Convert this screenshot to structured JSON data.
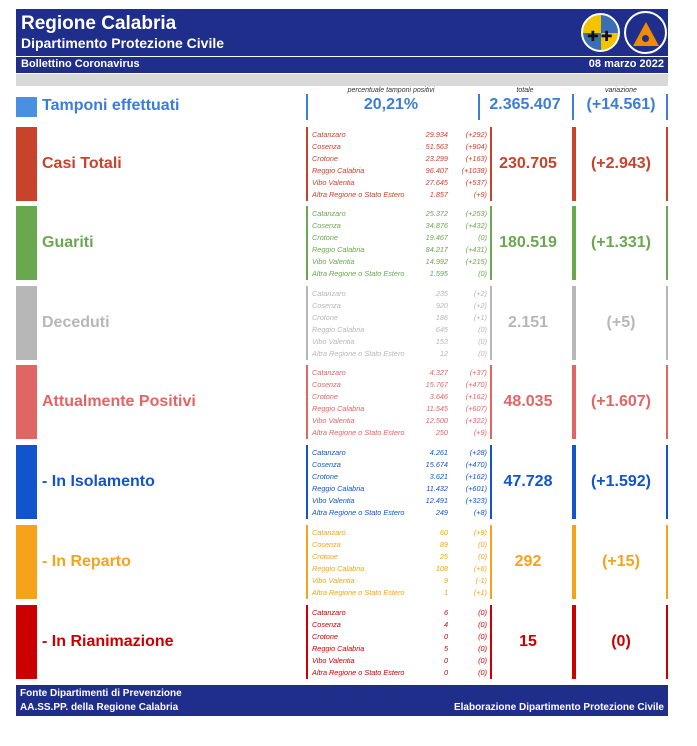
{
  "header": {
    "title": "Regione Calabria",
    "subtitle": "Dipartimento Protezione Civile",
    "bulletin": "Bollettino Coronavirus",
    "date": "08 marzo 2022"
  },
  "columns": {
    "pct_label": "percentuale tamponi positivi",
    "total_label": "totale",
    "variation_label": "variazione"
  },
  "tamponi": {
    "label": "Tamponi effettuati",
    "pct": "20,21%",
    "total": "2.365.407",
    "variation": "(+14.561)",
    "color": "#3b7dd8"
  },
  "sections": [
    {
      "id": "casi-totali",
      "label": "Casi Totali",
      "color": "#c8432b",
      "total": "230.705",
      "variation": "(+2.943)",
      "regions": [
        {
          "name": "Catanzaro",
          "value": "29.934",
          "delta": "(+292)"
        },
        {
          "name": "Cosenza",
          "value": "51.563",
          "delta": "(+904)"
        },
        {
          "name": "Crotone",
          "value": "23.299",
          "delta": "(+163)"
        },
        {
          "name": "Reggio Calabria",
          "value": "96.407",
          "delta": "(+1038)"
        },
        {
          "name": "Vibo Valentia",
          "value": "27.645",
          "delta": "(+537)"
        },
        {
          "name": "Altra Regione o Stato Estero",
          "value": "1.857",
          "delta": "(+9)"
        }
      ]
    },
    {
      "id": "guariti",
      "label": "Guariti",
      "color": "#6aa84f",
      "total": "180.519",
      "variation": "(+1.331)",
      "regions": [
        {
          "name": "Catanzaro",
          "value": "25.372",
          "delta": "(+253)"
        },
        {
          "name": "Cosenza",
          "value": "34.876",
          "delta": "(+432)"
        },
        {
          "name": "Crotone",
          "value": "19.467",
          "delta": "(0)"
        },
        {
          "name": "Reggio Calabria",
          "value": "84.217",
          "delta": "(+431)"
        },
        {
          "name": "Vibo Valentia",
          "value": "14.992",
          "delta": "(+215)"
        },
        {
          "name": "Altra Regione o Stato Estero",
          "value": "1.595",
          "delta": "(0)"
        }
      ]
    },
    {
      "id": "deceduti",
      "label": "Deceduti",
      "color": "#b7b7b7",
      "total": "2.151",
      "variation": "(+5)",
      "regions": [
        {
          "name": "Catanzaro",
          "value": "235",
          "delta": "(+2)"
        },
        {
          "name": "Cosenza",
          "value": "920",
          "delta": "(+2)"
        },
        {
          "name": "Crotone",
          "value": "186",
          "delta": "(+1)"
        },
        {
          "name": "Reggio Calabria",
          "value": "645",
          "delta": "(0)"
        },
        {
          "name": "Vibo Valentia",
          "value": "153",
          "delta": "(0)"
        },
        {
          "name": "Altra Regione o Stato Estero",
          "value": "12",
          "delta": "(0)"
        }
      ]
    },
    {
      "id": "attualmente-positivi",
      "label": "Attualmente Positivi",
      "color": "#e06666",
      "total": "48.035",
      "variation": "(+1.607)",
      "regions": [
        {
          "name": "Catanzaro",
          "value": "4.327",
          "delta": "(+37)"
        },
        {
          "name": "Cosenza",
          "value": "15.767",
          "delta": "(+470)"
        },
        {
          "name": "Crotone",
          "value": "3.646",
          "delta": "(+162)"
        },
        {
          "name": "Reggio Calabria",
          "value": "11.545",
          "delta": "(+607)"
        },
        {
          "name": "Vibo Valentia",
          "value": "12.500",
          "delta": "(+322)"
        },
        {
          "name": "Altra Regione o Stato Estero",
          "value": "250",
          "delta": "(+9)"
        }
      ]
    },
    {
      "id": "in-isolamento",
      "label": "- In Isolamento",
      "color": "#1155cc",
      "total": "47.728",
      "variation": "(+1.592)",
      "regions": [
        {
          "name": "Catanzaro",
          "value": "4.261",
          "delta": "(+28)"
        },
        {
          "name": "Cosenza",
          "value": "15.674",
          "delta": "(+470)"
        },
        {
          "name": "Crotone",
          "value": "3.621",
          "delta": "(+162)"
        },
        {
          "name": "Reggio Calabria",
          "value": "11.432",
          "delta": "(+601)"
        },
        {
          "name": "Vibo Valentia",
          "value": "12.491",
          "delta": "(+323)"
        },
        {
          "name": "Altra Regione o Stato Estero",
          "value": "249",
          "delta": "(+8)"
        }
      ]
    },
    {
      "id": "in-reparto",
      "label": "- In Reparto",
      "color": "#f6a31b",
      "total": "292",
      "variation": "(+15)",
      "regions": [
        {
          "name": "Catanzaro",
          "value": "60",
          "delta": "(+9)"
        },
        {
          "name": "Cosenza",
          "value": "89",
          "delta": "(0)"
        },
        {
          "name": "Crotone",
          "value": "25",
          "delta": "(0)"
        },
        {
          "name": "Reggio Calabria",
          "value": "108",
          "delta": "(+6)"
        },
        {
          "name": "Vibo Valentia",
          "value": "9",
          "delta": "(-1)"
        },
        {
          "name": "Altra Regione o Stato Estero",
          "value": "1",
          "delta": "(+1)"
        }
      ]
    },
    {
      "id": "in-rianimazione",
      "label": "- In Rianimazione",
      "color": "#cc0000",
      "total": "15",
      "variation": "(0)",
      "regions": [
        {
          "name": "Catanzaro",
          "value": "6",
          "delta": "(0)"
        },
        {
          "name": "Cosenza",
          "value": "4",
          "delta": "(0)"
        },
        {
          "name": "Crotone",
          "value": "0",
          "delta": "(0)"
        },
        {
          "name": "Reggio Calabria",
          "value": "5",
          "delta": "(0)"
        },
        {
          "name": "Vibo Valentia",
          "value": "0",
          "delta": "(0)"
        },
        {
          "name": "Altra Regione o Stato Estero",
          "value": "0",
          "delta": "(0)"
        }
      ]
    }
  ],
  "footer": {
    "line1": "Fonte Dipartimenti di Prevenzione",
    "line2": "AA.SS.PP.  della Regione Calabria",
    "right": "Elaborazione Dipartimento Protezione Civile"
  }
}
